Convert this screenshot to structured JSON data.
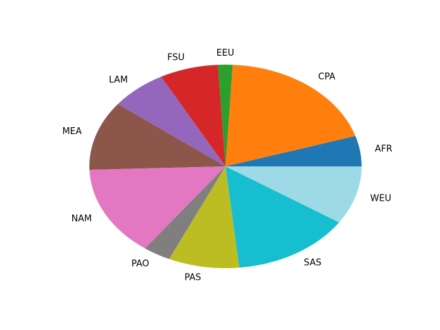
{
  "chart_data": {
    "type": "pie",
    "title": "",
    "start_angle_deg": 0,
    "direction": "counterclockwise",
    "slices": [
      {
        "label": "AFR",
        "value": 5.0,
        "color": "#1f77b4"
      },
      {
        "label": "CPA",
        "value": 20.0,
        "color": "#ff7f0e"
      },
      {
        "label": "EEU",
        "value": 1.8,
        "color": "#2ca02c"
      },
      {
        "label": "FSU",
        "value": 7.2,
        "color": "#d62728"
      },
      {
        "label": "LAM",
        "value": 6.9,
        "color": "#9467bd"
      },
      {
        "label": "MEA",
        "value": 11.4,
        "color": "#8c564b"
      },
      {
        "label": "NAM",
        "value": 14.9,
        "color": "#e377c2"
      },
      {
        "label": "PAO",
        "value": 3.4,
        "color": "#7f7f7f"
      },
      {
        "label": "PAS",
        "value": 8.7,
        "color": "#bcbd22"
      },
      {
        "label": "SAS",
        "value": 14.6,
        "color": "#17becf"
      },
      {
        "label": "WEU",
        "value": 9.6,
        "color": "#9edae5"
      }
    ]
  }
}
